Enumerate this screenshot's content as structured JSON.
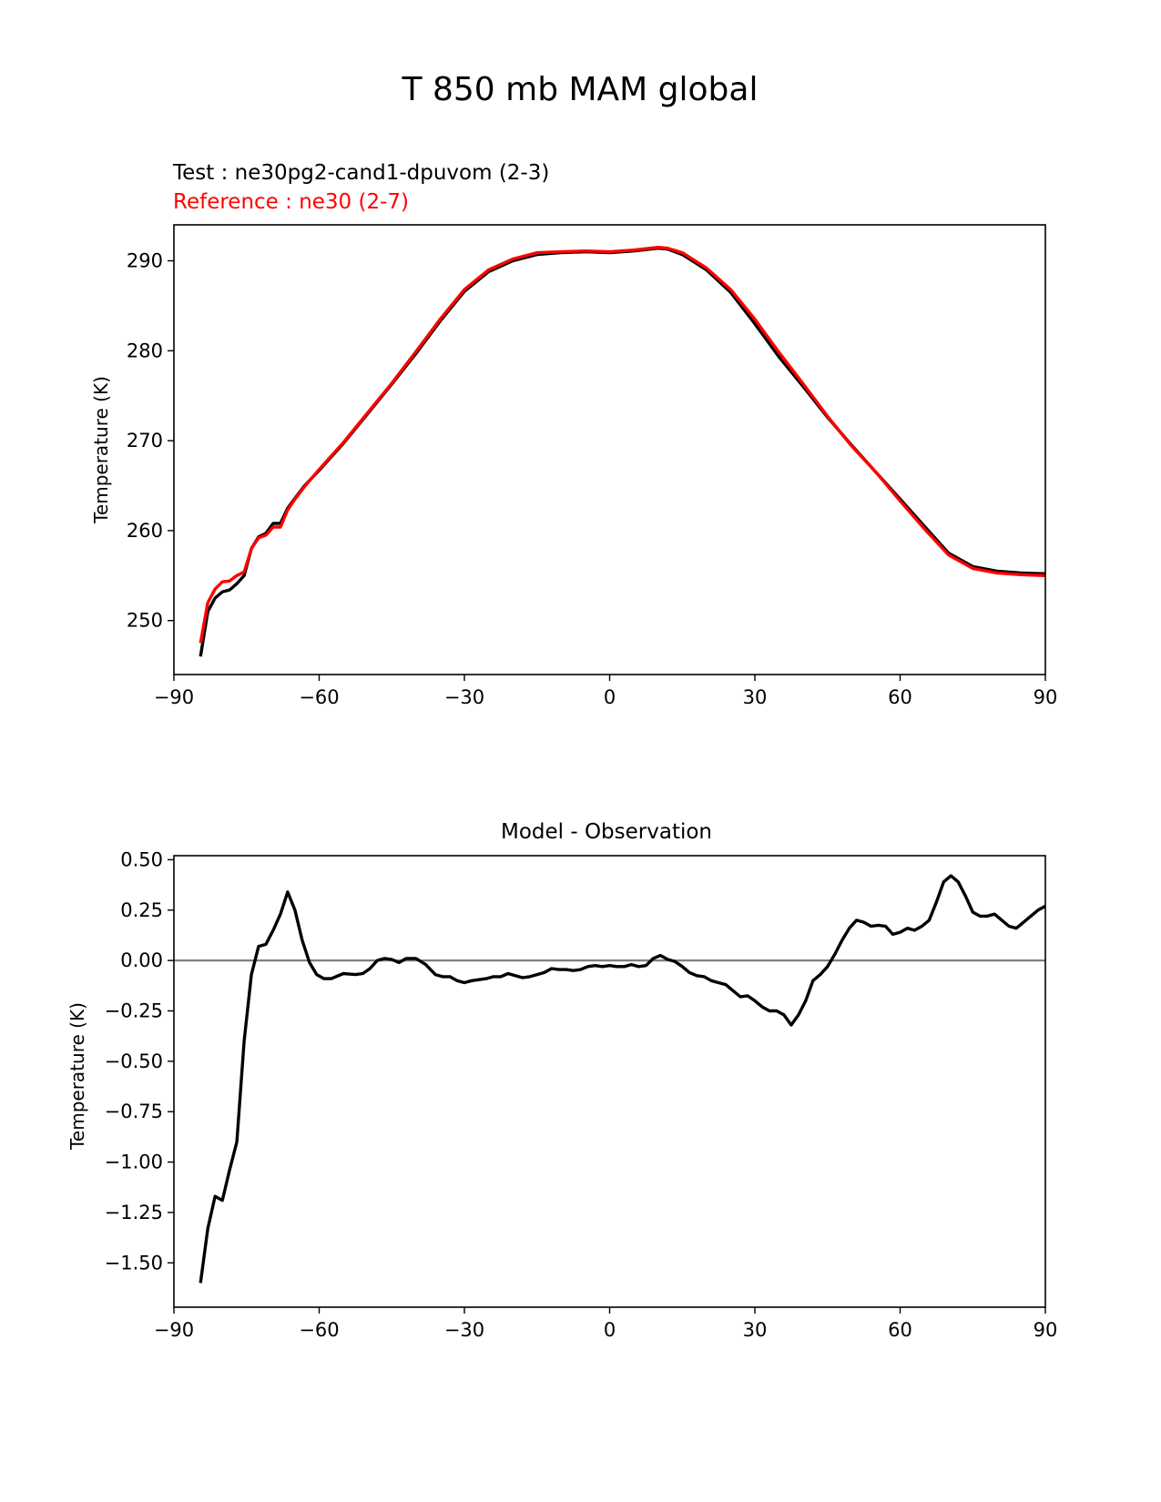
{
  "figure": {
    "title": "T 850 mb MAM global"
  },
  "chart_data": [
    {
      "type": "line",
      "test_label": "Test : ne30pg2-cand1-dpuvom (2-3)",
      "reference_label": "Reference : ne30 (2-7)",
      "title": "",
      "xlabel": "",
      "ylabel": "Temperature (K)",
      "xlim": [
        -90,
        90
      ],
      "ylim": [
        244,
        294
      ],
      "xticks": [
        -90,
        -60,
        -30,
        0,
        30,
        60,
        90
      ],
      "xtick_labels": [
        "−90",
        "−60",
        "−30",
        "0",
        "30",
        "60",
        "90"
      ],
      "yticks": [
        250,
        260,
        270,
        280,
        290
      ],
      "ytick_labels": [
        "250",
        "260",
        "270",
        "280",
        "290"
      ],
      "series": [
        {
          "name": "Test : ne30pg2-cand1-dpuvom (2-3)",
          "color": "#000000",
          "x": [
            -84.5,
            -83,
            -81.5,
            -80,
            -78.5,
            -77,
            -75.5,
            -74,
            -72.5,
            -71,
            -69.5,
            -68,
            -66.5,
            -65,
            -63,
            -60,
            -55,
            -50,
            -45,
            -40,
            -35,
            -30,
            -25,
            -20,
            -15,
            -10,
            -5,
            0,
            5,
            10,
            12,
            15,
            20,
            25,
            30,
            35,
            40,
            45,
            50,
            55,
            60,
            65,
            70,
            75,
            80,
            85,
            90
          ],
          "y": [
            246,
            251,
            252.5,
            253.2,
            253.4,
            254.1,
            255,
            258,
            259.3,
            259.7,
            260.8,
            260.8,
            262.5,
            263.6,
            265,
            266.7,
            269.7,
            273,
            276.3,
            279.7,
            283.3,
            286.6,
            288.8,
            290,
            290.7,
            290.9,
            291,
            290.9,
            291.1,
            291.4,
            291.3,
            290.7,
            289,
            286.5,
            283,
            279.3,
            276,
            272.6,
            269.5,
            266.5,
            263.5,
            260.5,
            257.5,
            256,
            255.5,
            255.3,
            255.2
          ]
        },
        {
          "name": "Reference : ne30 (2-7)",
          "color": "#ff0000",
          "x": [
            -84.5,
            -83,
            -81.5,
            -80,
            -78.5,
            -77,
            -75.5,
            -74,
            -72.5,
            -71,
            -69.5,
            -68,
            -66.5,
            -65,
            -63,
            -60,
            -55,
            -50,
            -45,
            -40,
            -35,
            -30,
            -25,
            -20,
            -15,
            -10,
            -5,
            0,
            5,
            10,
            12,
            15,
            20,
            25,
            30,
            35,
            40,
            45,
            50,
            55,
            60,
            65,
            70,
            75,
            80,
            85,
            90
          ],
          "y": [
            247.5,
            252,
            253.5,
            254.3,
            254.4,
            255,
            255.4,
            258,
            259.2,
            259.5,
            260.4,
            260.4,
            262.3,
            263.5,
            264.9,
            266.8,
            269.8,
            273.1,
            276.4,
            279.9,
            283.5,
            286.8,
            289,
            290.2,
            290.9,
            291,
            291.1,
            291,
            291.2,
            291.5,
            291.4,
            290.9,
            289.2,
            286.8,
            283.5,
            279.8,
            276.3,
            272.7,
            269.4,
            266.5,
            263.3,
            260.2,
            257.3,
            255.8,
            255.3,
            255.1,
            255
          ]
        }
      ]
    },
    {
      "type": "line",
      "title": "Model - Observation",
      "xlabel": "",
      "ylabel": "Temperature (K)",
      "xlim": [
        -90,
        90
      ],
      "ylim": [
        -1.72,
        0.52
      ],
      "xticks": [
        -90,
        -60,
        -30,
        0,
        30,
        60,
        90
      ],
      "xtick_labels": [
        "−90",
        "−60",
        "−30",
        "0",
        "30",
        "60",
        "90"
      ],
      "yticks": [
        0.5,
        0.25,
        0.0,
        -0.25,
        -0.5,
        -0.75,
        -1.0,
        -1.25,
        -1.5
      ],
      "ytick_labels": [
        "0.50",
        "0.25",
        "0.00",
        "−0.25",
        "−0.50",
        "−0.75",
        "−1.00",
        "−1.25",
        "−1.50"
      ],
      "reference_line": {
        "y": 0,
        "color": "#808080"
      },
      "series": [
        {
          "name": "Model - Observation",
          "color": "#000000",
          "x": [
            -84.5,
            -83,
            -81.5,
            -80,
            -78.5,
            -77,
            -75.5,
            -74,
            -72.5,
            -71,
            -69.5,
            -68,
            -66.5,
            -65,
            -63.5,
            -62,
            -60.5,
            -59,
            -57.5,
            -55,
            -52.5,
            -51,
            -49.5,
            -48,
            -46.5,
            -45,
            -43.5,
            -42,
            -40,
            -38,
            -36,
            -34.5,
            -33,
            -31.5,
            -30,
            -28.5,
            -27,
            -25.5,
            -24,
            -22.5,
            -21,
            -19.5,
            -18,
            -16.5,
            -15,
            -13.5,
            -12,
            -10.5,
            -9,
            -7.5,
            -6,
            -4.5,
            -3,
            -1.5,
            0,
            1.5,
            3,
            4.5,
            6,
            7.5,
            9,
            10.5,
            12,
            13.5,
            15,
            16.5,
            18,
            19.5,
            21,
            22.5,
            24,
            25.5,
            27,
            28.5,
            30,
            31.5,
            33,
            34.5,
            36,
            37.5,
            39,
            40.5,
            42,
            43.5,
            45,
            46.5,
            48,
            49.5,
            51,
            52.5,
            54,
            55.5,
            57,
            58.5,
            60,
            61.5,
            63,
            64.5,
            66,
            67.5,
            69,
            70.5,
            72,
            73.5,
            75,
            76.5,
            78,
            79.5,
            81,
            82.5,
            84,
            85.5,
            87,
            88.5,
            90
          ],
          "y": [
            -1.6,
            -1.33,
            -1.17,
            -1.19,
            -1.04,
            -0.9,
            -0.4,
            -0.07,
            0.07,
            0.08,
            0.15,
            0.23,
            0.34,
            0.25,
            0.1,
            -0.01,
            -0.07,
            -0.09,
            -0.09,
            -0.065,
            -0.07,
            -0.065,
            -0.04,
            0,
            0.01,
            0.005,
            -0.01,
            0.01,
            0.01,
            -0.02,
            -0.07,
            -0.08,
            -0.08,
            -0.1,
            -0.11,
            -0.1,
            -0.095,
            -0.09,
            -0.08,
            -0.08,
            -0.065,
            -0.075,
            -0.085,
            -0.08,
            -0.07,
            -0.06,
            -0.04,
            -0.045,
            -0.045,
            -0.05,
            -0.045,
            -0.03,
            -0.025,
            -0.03,
            -0.025,
            -0.03,
            -0.03,
            -0.02,
            -0.03,
            -0.025,
            0.01,
            0.025,
            0.005,
            -0.005,
            -0.03,
            -0.06,
            -0.075,
            -0.08,
            -0.1,
            -0.11,
            -0.12,
            -0.15,
            -0.18,
            -0.175,
            -0.2,
            -0.23,
            -0.25,
            -0.25,
            -0.27,
            -0.32,
            -0.27,
            -0.2,
            -0.1,
            -0.07,
            -0.03,
            0.03,
            0.1,
            0.16,
            0.2,
            0.19,
            0.17,
            0.175,
            0.17,
            0.13,
            0.14,
            0.16,
            0.15,
            0.17,
            0.2,
            0.29,
            0.39,
            0.42,
            0.39,
            0.32,
            0.24,
            0.22,
            0.22,
            0.23,
            0.2,
            0.17,
            0.16,
            0.19,
            0.22,
            0.25,
            0.27
          ]
        }
      ]
    }
  ]
}
